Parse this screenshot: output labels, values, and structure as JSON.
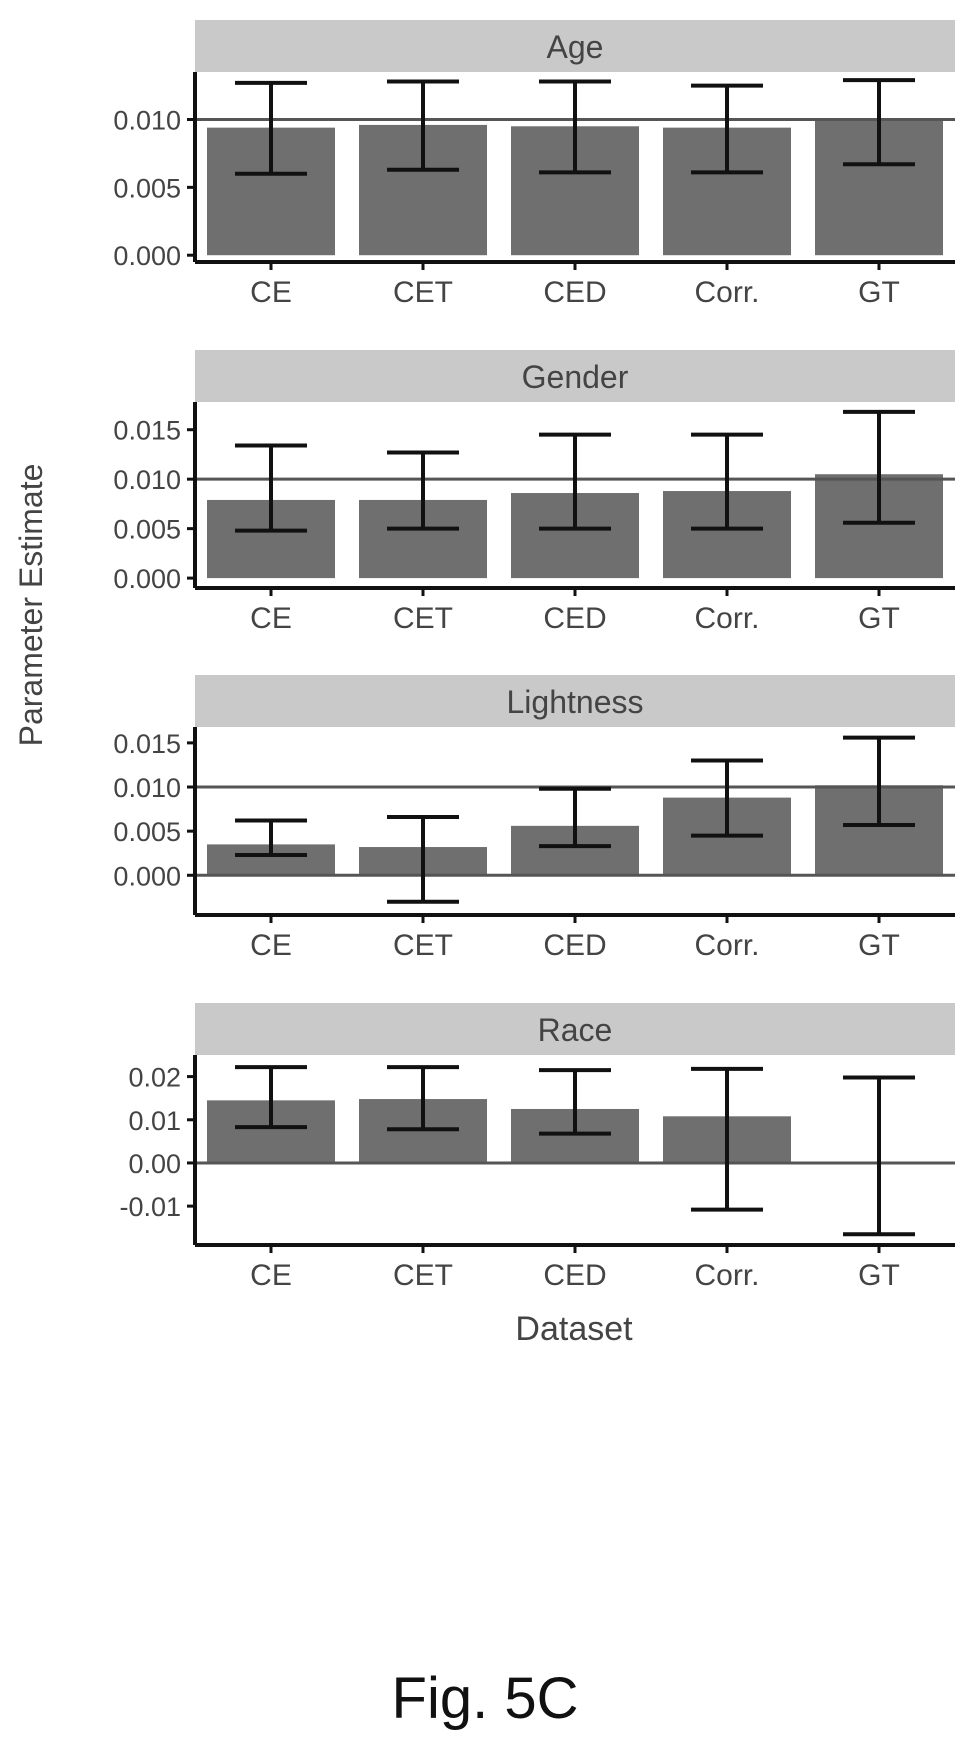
{
  "figure": {
    "ylabel": "Parameter Estimate",
    "xlabel": "Dataset",
    "caption": "Fig. 5C",
    "colors": {
      "bar": "#6f6f6f",
      "strip": "#c9c9c9",
      "axis": "#111111",
      "ref_line": "#555555",
      "text": "#444444"
    }
  },
  "chart_data": [
    {
      "type": "bar",
      "title": "Age",
      "categories": [
        "CE",
        "CET",
        "CED",
        "Corr.",
        "GT"
      ],
      "values": [
        0.0094,
        0.0096,
        0.0095,
        0.0094,
        0.0099
      ],
      "error_low": [
        0.006,
        0.0063,
        0.0061,
        0.0061,
        0.0067
      ],
      "error_high": [
        0.0127,
        0.0128,
        0.0128,
        0.0125,
        0.0129
      ],
      "yticks": [
        "0.000",
        "0.005",
        "0.010"
      ],
      "ytick_values": [
        0.0,
        0.005,
        0.01
      ],
      "ylim": [
        -0.0005,
        0.0135
      ],
      "ref_line": 0.01
    },
    {
      "type": "bar",
      "title": "Gender",
      "categories": [
        "CE",
        "CET",
        "CED",
        "Corr.",
        "GT"
      ],
      "values": [
        0.0079,
        0.0079,
        0.0086,
        0.0088,
        0.0105
      ],
      "error_low": [
        0.0048,
        0.005,
        0.005,
        0.005,
        0.0056
      ],
      "error_high": [
        0.0134,
        0.0127,
        0.0145,
        0.0145,
        0.0168
      ],
      "yticks": [
        "0.000",
        "0.005",
        "0.010",
        "0.015"
      ],
      "ytick_values": [
        0.0,
        0.005,
        0.01,
        0.015
      ],
      "ylim": [
        -0.001,
        0.0178
      ],
      "ref_line": 0.01
    },
    {
      "type": "bar",
      "title": "Lightness",
      "categories": [
        "CE",
        "CET",
        "CED",
        "Corr.",
        "GT"
      ],
      "values": [
        0.0035,
        0.0032,
        0.0056,
        0.0088,
        0.0102
      ],
      "error_low": [
        0.0023,
        -0.003,
        0.0033,
        0.0045,
        0.0057
      ],
      "error_high": [
        0.0062,
        0.0066,
        0.0098,
        0.013,
        0.0156
      ],
      "yticks": [
        "0.000",
        "0.005",
        "0.010",
        "0.015"
      ],
      "ytick_values": [
        0.0,
        0.005,
        0.01,
        0.015
      ],
      "ylim": [
        -0.0045,
        0.0168
      ],
      "ref_line": 0.01,
      "zero_line": 0.0
    },
    {
      "type": "bar",
      "title": "Race",
      "categories": [
        "CE",
        "CET",
        "CED",
        "Corr.",
        "GT"
      ],
      "values": [
        0.0145,
        0.0148,
        0.0125,
        0.0108,
        0.0
      ],
      "error_low": [
        0.0083,
        0.0078,
        0.0068,
        -0.0108,
        -0.0165
      ],
      "error_high": [
        0.0222,
        0.0222,
        0.0215,
        0.0218,
        0.0198
      ],
      "yticks": [
        "-0.01",
        "0.00",
        "0.01",
        "0.02"
      ],
      "ytick_values": [
        -0.01,
        0.0,
        0.01,
        0.02
      ],
      "ylim": [
        -0.019,
        0.025
      ],
      "ref_line": 0.0
    }
  ]
}
